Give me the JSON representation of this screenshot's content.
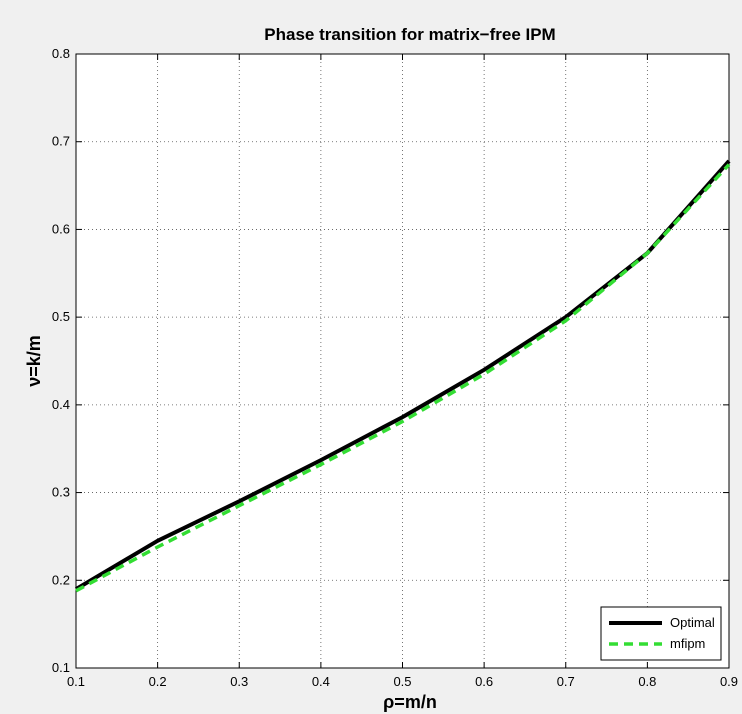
{
  "chart_data": {
    "type": "line",
    "title": "Phase transition for matrix−free IPM",
    "xlabel": "ρ=m/n",
    "ylabel": "ν=k/m",
    "xlim": [
      0.1,
      0.9
    ],
    "ylim": [
      0.1,
      0.8
    ],
    "xticks": [
      0.1,
      0.2,
      0.3,
      0.4,
      0.5,
      0.6,
      0.7,
      0.8,
      0.9
    ],
    "yticks": [
      0.1,
      0.2,
      0.3,
      0.4,
      0.5,
      0.6,
      0.7,
      0.8
    ],
    "xtick_labels": [
      "0.1",
      "0.2",
      "0.3",
      "0.4",
      "0.5",
      "0.6",
      "0.7",
      "0.8",
      "0.9"
    ],
    "ytick_labels": [
      "0.1",
      "0.2",
      "0.3",
      "0.4",
      "0.5",
      "0.6",
      "0.7",
      "0.8"
    ],
    "grid": true,
    "legend_position": "bottom-right",
    "x": [
      0.1,
      0.2,
      0.3,
      0.4,
      0.5,
      0.6,
      0.7,
      0.8,
      0.9
    ],
    "series": [
      {
        "name": "Optimal",
        "values": [
          0.19,
          0.245,
          0.29,
          0.337,
          0.386,
          0.44,
          0.5,
          0.573,
          0.678
        ],
        "color": "#000000",
        "style": "solid"
      },
      {
        "name": "mfipm",
        "values": [
          0.188,
          0.238,
          0.285,
          0.332,
          0.381,
          0.435,
          0.496,
          0.573,
          0.674
        ],
        "color": "#33dd33",
        "style": "dashed"
      }
    ]
  }
}
